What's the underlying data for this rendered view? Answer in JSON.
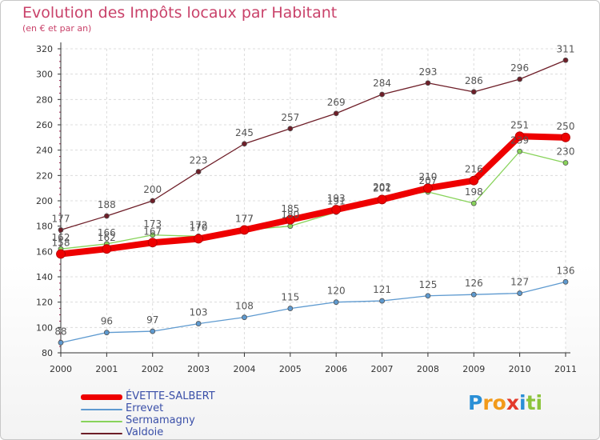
{
  "chart_data": {
    "type": "line",
    "title": "Evolution des Impôts locaux par Habitant",
    "subtitle": "(en € et par an)",
    "categories": [
      "2000",
      "2001",
      "2002",
      "2003",
      "2004",
      "2005",
      "2006",
      "2007",
      "2008",
      "2009",
      "2010",
      "2011"
    ],
    "yticks": [
      80,
      100,
      120,
      140,
      160,
      180,
      200,
      220,
      240,
      260,
      280,
      300,
      320
    ],
    "ylim": [
      80,
      320
    ],
    "grid": true,
    "series": [
      {
        "name": "Valdoie",
        "color": "#6e1e28",
        "values": [
          177,
          188,
          200,
          223,
          245,
          257,
          269,
          284,
          293,
          286,
          296,
          311
        ]
      },
      {
        "name": "Sermamagny",
        "color": "#88d35a",
        "values": [
          162,
          166,
          173,
          172,
          177,
          180,
          191,
          202,
          207,
          198,
          239,
          230
        ]
      },
      {
        "name": "Errevet",
        "color": "#5e9ad0",
        "values": [
          88,
          96,
          97,
          103,
          108,
          115,
          120,
          121,
          125,
          126,
          127,
          136
        ]
      },
      {
        "name": "ÉVETTE-SALBERT",
        "color": "#ee0000",
        "values": [
          158,
          162,
          167,
          170,
          177,
          185,
          193,
          201,
          210,
          216,
          251,
          250
        ]
      }
    ],
    "legend": [
      "ÉVETTE-SALBERT",
      "Errevet",
      "Sermamagny",
      "Valdoie"
    ]
  },
  "logo": {
    "letters": [
      "P",
      "r",
      "o",
      "x",
      "i",
      "t",
      "i"
    ],
    "colors": [
      "#2a8fd6",
      "#f29a1a",
      "#f29a1a",
      "#e33a2b",
      "#2a8fd6",
      "#8cc43c",
      "#8cc43c"
    ]
  }
}
